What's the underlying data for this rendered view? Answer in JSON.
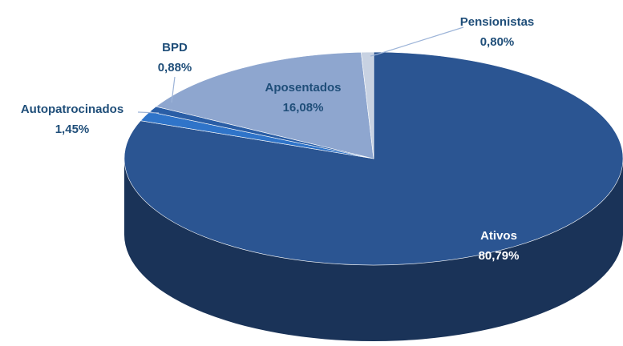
{
  "chart_data": {
    "type": "pie",
    "categories": [
      "Ativos",
      "Autopatrocinados",
      "BPD",
      "Aposentados",
      "Pensionistas"
    ],
    "values": [
      80.79,
      1.45,
      0.88,
      16.08,
      0.8
    ],
    "value_labels": [
      "80,79%",
      "1,45%",
      "0,88%",
      "16,08%",
      "0,80%"
    ],
    "colors": [
      "#2b5592",
      "#2f74c9",
      "#2a5ea6",
      "#8ea6cf",
      "#c8d2e2"
    ]
  }
}
